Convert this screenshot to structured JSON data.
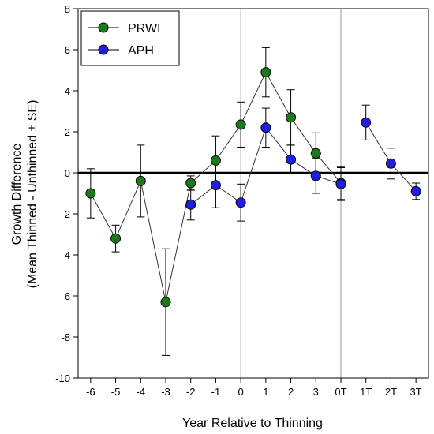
{
  "chart_data": {
    "type": "scatter",
    "xlabel": "Year Relative to Thinning",
    "ylabel_lines": [
      "Growth Difference",
      "(Mean Thinned - Unthinned ± SE)"
    ],
    "categories": [
      "-6",
      "-5",
      "-4",
      "-3",
      "-2",
      "-1",
      "0",
      "1",
      "2",
      "3",
      "0T",
      "1T",
      "2T",
      "3T"
    ],
    "yticks": [
      "8",
      "6",
      "4",
      "2",
      "0",
      "-2",
      "-4",
      "-6",
      "-8",
      "-10"
    ],
    "ylim": [
      -10,
      8
    ],
    "grid": false,
    "legend_position": "top-left",
    "reference_lines": {
      "horizontal_zero": true,
      "vertical_at": [
        "0",
        "0T"
      ]
    },
    "series": [
      {
        "name": "PRWI",
        "color": "#1a7a1a",
        "points": [
          {
            "x": "-6",
            "y": -1.0,
            "se": 1.2
          },
          {
            "x": "-5",
            "y": -3.2,
            "se": 0.65
          },
          {
            "x": "-4",
            "y": -0.4,
            "se": 1.75
          },
          {
            "x": "-3",
            "y": -6.3,
            "se": 2.6
          },
          {
            "x": "-2",
            "y": -0.5,
            "se": 0.35
          },
          {
            "x": "-1",
            "y": 0.6,
            "se": 1.2
          },
          {
            "x": "0",
            "y": 2.35,
            "se": 1.1
          },
          {
            "x": "1",
            "y": 4.9,
            "se": 1.2
          },
          {
            "x": "2",
            "y": 2.7,
            "se": 1.35
          },
          {
            "x": "3",
            "y": 0.95,
            "se": 1.0
          },
          {
            "x": "0T",
            "y": -0.5,
            "se": 0.8
          }
        ],
        "segments": [
          [
            "-6",
            "-5",
            "-4",
            "-3",
            "-2",
            "-1",
            "0",
            "1",
            "2",
            "3",
            "0T"
          ]
        ]
      },
      {
        "name": "APH",
        "color": "#1f1fdd",
        "points": [
          {
            "x": "-2",
            "y": -1.55,
            "se": 0.75
          },
          {
            "x": "-1",
            "y": -0.6,
            "se": 1.1
          },
          {
            "x": "0",
            "y": -1.45,
            "se": 0.9
          },
          {
            "x": "1",
            "y": 2.2,
            "se": 0.95
          },
          {
            "x": "2",
            "y": 0.65,
            "se": 0.7
          },
          {
            "x": "3",
            "y": -0.15,
            "se": 0.85
          },
          {
            "x": "0T",
            "y": -0.55,
            "se": 0.8
          },
          {
            "x": "1T",
            "y": 2.45,
            "se": 0.85
          },
          {
            "x": "2T",
            "y": 0.45,
            "se": 0.75
          },
          {
            "x": "3T",
            "y": -0.9,
            "se": 0.4
          }
        ],
        "segments": [
          [
            "-2",
            "-1",
            "0",
            "1",
            "2",
            "3",
            "0T"
          ],
          [
            "1T",
            "2T",
            "3T"
          ]
        ]
      }
    ]
  }
}
